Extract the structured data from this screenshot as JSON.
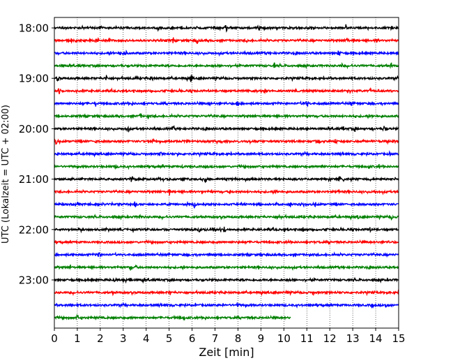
{
  "chart_data": {
    "type": "line",
    "title": "",
    "xlabel": "Zeit  [min]",
    "ylabel": "UTC (Lokalzeit = UTC + 02:00)",
    "xlim": [
      0,
      15
    ],
    "x_ticks": [
      0,
      1,
      2,
      3,
      4,
      5,
      6,
      7,
      8,
      9,
      10,
      11,
      12,
      13,
      14,
      15
    ],
    "x_tick_labels": [
      "0",
      "1",
      "2",
      "3",
      "4",
      "5",
      "6",
      "7",
      "8",
      "9",
      "10",
      "11",
      "12",
      "13",
      "14",
      "15"
    ],
    "grid": "vertical dotted",
    "trace_interval_minutes": 15,
    "hour_labels": [
      {
        "label": "18:00",
        "trace_index": 0
      },
      {
        "label": "19:00",
        "trace_index": 4
      },
      {
        "label": "20:00",
        "trace_index": 8
      },
      {
        "label": "21:00",
        "trace_index": 12
      },
      {
        "label": "22:00",
        "trace_index": 16
      },
      {
        "label": "23:00",
        "trace_index": 20
      }
    ],
    "color_cycle": [
      "#000000",
      "#ff0000",
      "#0000ff",
      "#008000"
    ],
    "traces": [
      {
        "start": "18:00",
        "duration_min": 15
      },
      {
        "start": "18:15",
        "duration_min": 15
      },
      {
        "start": "18:30",
        "duration_min": 15
      },
      {
        "start": "18:45",
        "duration_min": 15
      },
      {
        "start": "19:00",
        "duration_min": 15
      },
      {
        "start": "19:15",
        "duration_min": 15
      },
      {
        "start": "19:30",
        "duration_min": 15
      },
      {
        "start": "19:45",
        "duration_min": 15
      },
      {
        "start": "20:00",
        "duration_min": 15
      },
      {
        "start": "20:15",
        "duration_min": 15
      },
      {
        "start": "20:30",
        "duration_min": 15
      },
      {
        "start": "20:45",
        "duration_min": 15
      },
      {
        "start": "21:00",
        "duration_min": 15
      },
      {
        "start": "21:15",
        "duration_min": 15
      },
      {
        "start": "21:30",
        "duration_min": 15
      },
      {
        "start": "21:45",
        "duration_min": 15
      },
      {
        "start": "22:00",
        "duration_min": 15
      },
      {
        "start": "22:15",
        "duration_min": 15
      },
      {
        "start": "22:30",
        "duration_min": 15
      },
      {
        "start": "22:45",
        "duration_min": 15
      },
      {
        "start": "23:00",
        "duration_min": 15
      },
      {
        "start": "23:15",
        "duration_min": 15
      },
      {
        "start": "23:30",
        "duration_min": 15
      },
      {
        "start": "23:45",
        "duration_min": 10.3
      }
    ]
  }
}
